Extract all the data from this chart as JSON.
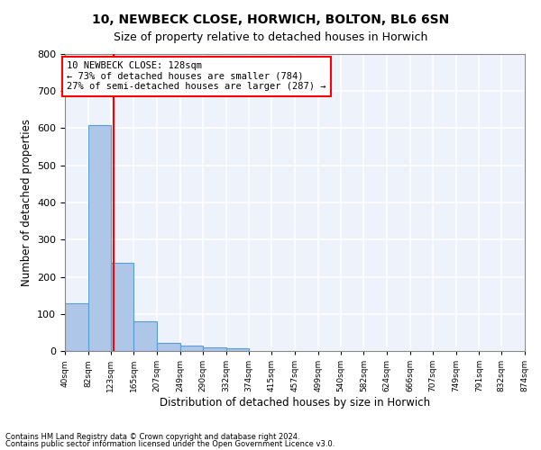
{
  "title1": "10, NEWBECK CLOSE, HORWICH, BOLTON, BL6 6SN",
  "title2": "Size of property relative to detached houses in Horwich",
  "xlabel": "Distribution of detached houses by size in Horwich",
  "ylabel": "Number of detached properties",
  "footer1": "Contains HM Land Registry data © Crown copyright and database right 2024.",
  "footer2": "Contains public sector information licensed under the Open Government Licence v3.0.",
  "bin_edges": [
    40,
    82,
    123,
    165,
    207,
    249,
    290,
    332,
    374,
    415,
    457,
    499,
    540,
    582,
    624,
    666,
    707,
    749,
    791,
    832,
    874
  ],
  "bar_heights": [
    128,
    608,
    237,
    80,
    22,
    15,
    10,
    8,
    0,
    0,
    0,
    0,
    0,
    0,
    0,
    0,
    0,
    0,
    0,
    0
  ],
  "bar_color": "#aec6e8",
  "bar_edge_color": "#5a9fd4",
  "property_size": 128,
  "annotation_text": "10 NEWBECK CLOSE: 128sqm\n← 73% of detached houses are smaller (784)\n27% of semi-detached houses are larger (287) →",
  "annotation_box_color": "white",
  "annotation_box_edge": "red",
  "vline_color": "red",
  "ylim": [
    0,
    800
  ],
  "xlim": [
    40,
    874
  ],
  "background_color": "#eef2fb",
  "grid_color": "white"
}
